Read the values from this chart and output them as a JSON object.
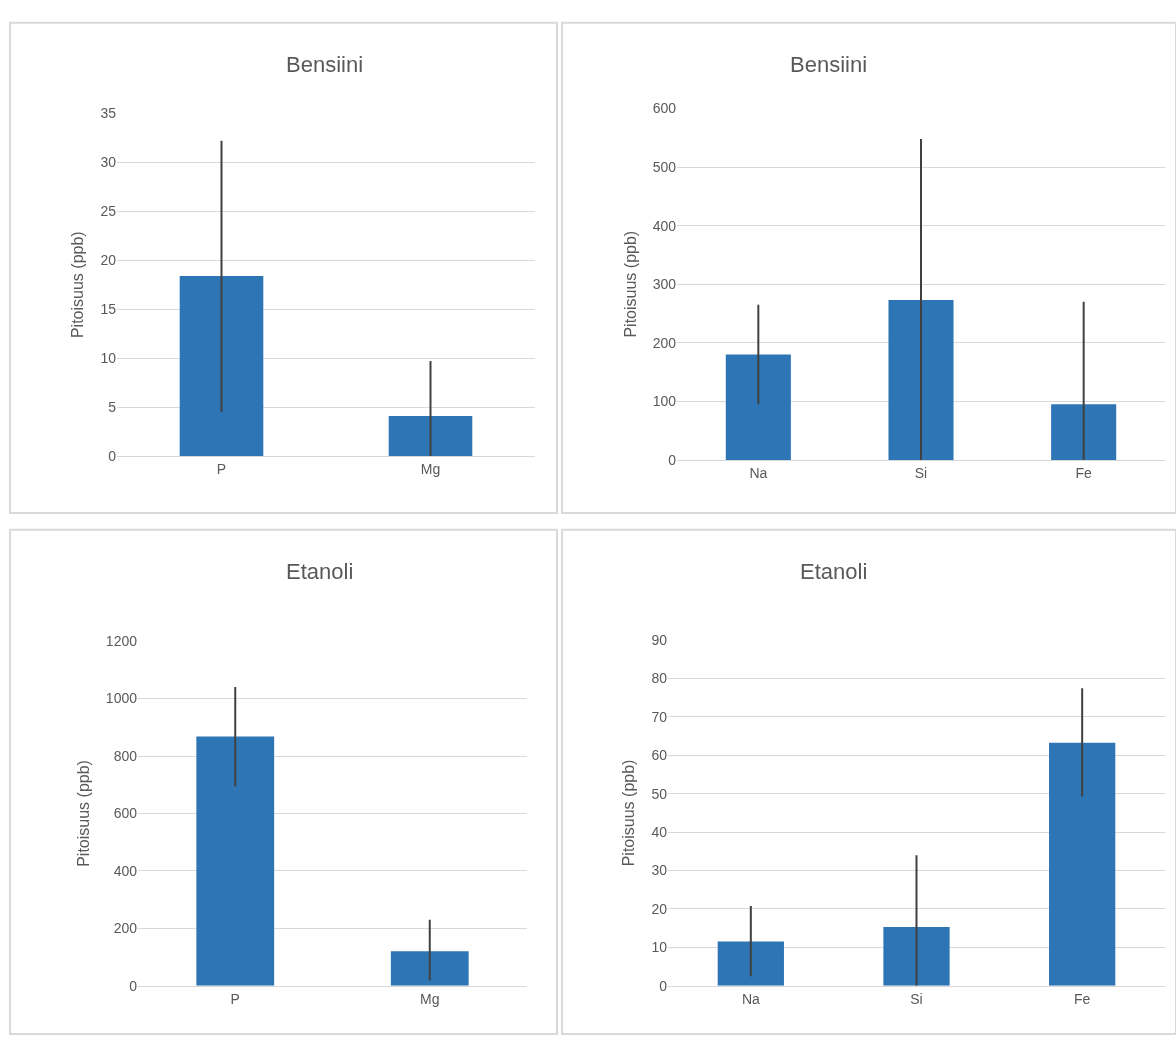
{
  "chart_data": [
    {
      "type": "bar",
      "title": "Bensiini",
      "ylabel": "Pitoisuus (ppb)",
      "categories": [
        "P",
        "Mg"
      ],
      "values": [
        18.4,
        4.1
      ],
      "color": "#2e75b6",
      "errors": [
        [
          4.5,
          32.2
        ],
        [
          0,
          9.7
        ]
      ],
      "ylim": [
        0,
        35
      ],
      "yticks": [
        0,
        5,
        10,
        15,
        20,
        25,
        30,
        35
      ],
      "grid": "y"
    },
    {
      "type": "bar",
      "title": "Bensiini",
      "ylabel": "Pitoisuus (ppb)",
      "categories": [
        "Na",
        "Si",
        "Fe"
      ],
      "values": [
        180,
        273,
        95
      ],
      "color": "#2e75b6",
      "errors": [
        [
          95,
          265
        ],
        [
          0,
          548
        ],
        [
          0,
          270
        ]
      ],
      "ylim": [
        0,
        600
      ],
      "yticks": [
        0,
        100,
        200,
        300,
        400,
        500,
        600
      ],
      "grid": "y"
    },
    {
      "type": "bar",
      "title": "Etanoli",
      "ylabel": "Pitoisuus (ppb)",
      "categories": [
        "P",
        "Mg"
      ],
      "values": [
        868,
        120
      ],
      "color": "#2e75b6",
      "errors": [
        [
          695,
          1040
        ],
        [
          18,
          230
        ]
      ],
      "ylim": [
        0,
        1200
      ],
      "yticks": [
        0,
        200,
        400,
        600,
        800,
        1000,
        1200
      ],
      "grid": "y"
    },
    {
      "type": "bar",
      "title": "Etanoli",
      "ylabel": "Pitoisuus (ppb)",
      "categories": [
        "Na",
        "Si",
        "Fe"
      ],
      "values": [
        11.5,
        15.3,
        63.3
      ],
      "color": "#2e75b6",
      "errors": [
        [
          2.5,
          20.8
        ],
        [
          0,
          34
        ],
        [
          49.3,
          77.5
        ]
      ],
      "ylim": [
        0,
        90
      ],
      "yticks": [
        0,
        10,
        20,
        30,
        40,
        50,
        60,
        70,
        80,
        90
      ],
      "grid": "y"
    }
  ]
}
